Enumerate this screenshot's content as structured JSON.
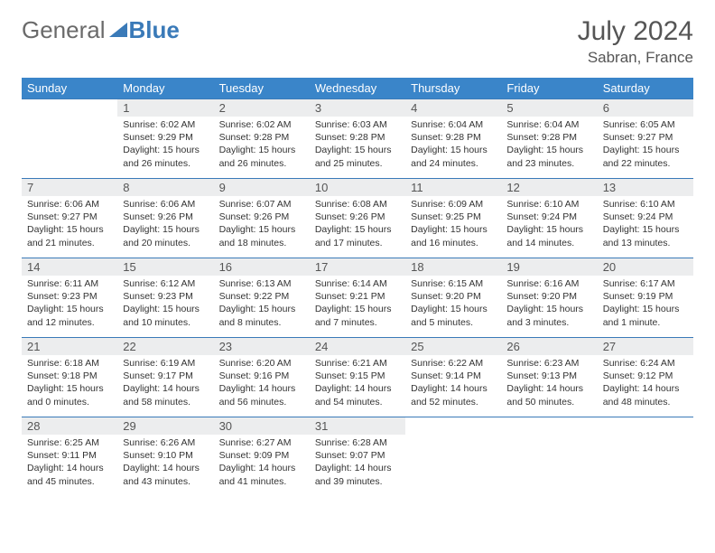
{
  "logo": {
    "text1": "General",
    "text2": "Blue"
  },
  "title": "July 2024",
  "location": "Sabran, France",
  "colors": {
    "header_bg": "#3a85c9",
    "header_text": "#ffffff",
    "border": "#3a7ab8",
    "daynum_bg": "#ecedee",
    "text": "#333333",
    "logo_gray": "#6a6a6a",
    "logo_blue": "#3a7ab8"
  },
  "weekdays": [
    "Sunday",
    "Monday",
    "Tuesday",
    "Wednesday",
    "Thursday",
    "Friday",
    "Saturday"
  ],
  "weeks": [
    [
      null,
      {
        "n": "1",
        "sr": "6:02 AM",
        "ss": "9:29 PM",
        "dl": "15 hours and 26 minutes."
      },
      {
        "n": "2",
        "sr": "6:02 AM",
        "ss": "9:28 PM",
        "dl": "15 hours and 26 minutes."
      },
      {
        "n": "3",
        "sr": "6:03 AM",
        "ss": "9:28 PM",
        "dl": "15 hours and 25 minutes."
      },
      {
        "n": "4",
        "sr": "6:04 AM",
        "ss": "9:28 PM",
        "dl": "15 hours and 24 minutes."
      },
      {
        "n": "5",
        "sr": "6:04 AM",
        "ss": "9:28 PM",
        "dl": "15 hours and 23 minutes."
      },
      {
        "n": "6",
        "sr": "6:05 AM",
        "ss": "9:27 PM",
        "dl": "15 hours and 22 minutes."
      }
    ],
    [
      {
        "n": "7",
        "sr": "6:06 AM",
        "ss": "9:27 PM",
        "dl": "15 hours and 21 minutes."
      },
      {
        "n": "8",
        "sr": "6:06 AM",
        "ss": "9:26 PM",
        "dl": "15 hours and 20 minutes."
      },
      {
        "n": "9",
        "sr": "6:07 AM",
        "ss": "9:26 PM",
        "dl": "15 hours and 18 minutes."
      },
      {
        "n": "10",
        "sr": "6:08 AM",
        "ss": "9:26 PM",
        "dl": "15 hours and 17 minutes."
      },
      {
        "n": "11",
        "sr": "6:09 AM",
        "ss": "9:25 PM",
        "dl": "15 hours and 16 minutes."
      },
      {
        "n": "12",
        "sr": "6:10 AM",
        "ss": "9:24 PM",
        "dl": "15 hours and 14 minutes."
      },
      {
        "n": "13",
        "sr": "6:10 AM",
        "ss": "9:24 PM",
        "dl": "15 hours and 13 minutes."
      }
    ],
    [
      {
        "n": "14",
        "sr": "6:11 AM",
        "ss": "9:23 PM",
        "dl": "15 hours and 12 minutes."
      },
      {
        "n": "15",
        "sr": "6:12 AM",
        "ss": "9:23 PM",
        "dl": "15 hours and 10 minutes."
      },
      {
        "n": "16",
        "sr": "6:13 AM",
        "ss": "9:22 PM",
        "dl": "15 hours and 8 minutes."
      },
      {
        "n": "17",
        "sr": "6:14 AM",
        "ss": "9:21 PM",
        "dl": "15 hours and 7 minutes."
      },
      {
        "n": "18",
        "sr": "6:15 AM",
        "ss": "9:20 PM",
        "dl": "15 hours and 5 minutes."
      },
      {
        "n": "19",
        "sr": "6:16 AM",
        "ss": "9:20 PM",
        "dl": "15 hours and 3 minutes."
      },
      {
        "n": "20",
        "sr": "6:17 AM",
        "ss": "9:19 PM",
        "dl": "15 hours and 1 minute."
      }
    ],
    [
      {
        "n": "21",
        "sr": "6:18 AM",
        "ss": "9:18 PM",
        "dl": "15 hours and 0 minutes."
      },
      {
        "n": "22",
        "sr": "6:19 AM",
        "ss": "9:17 PM",
        "dl": "14 hours and 58 minutes."
      },
      {
        "n": "23",
        "sr": "6:20 AM",
        "ss": "9:16 PM",
        "dl": "14 hours and 56 minutes."
      },
      {
        "n": "24",
        "sr": "6:21 AM",
        "ss": "9:15 PM",
        "dl": "14 hours and 54 minutes."
      },
      {
        "n": "25",
        "sr": "6:22 AM",
        "ss": "9:14 PM",
        "dl": "14 hours and 52 minutes."
      },
      {
        "n": "26",
        "sr": "6:23 AM",
        "ss": "9:13 PM",
        "dl": "14 hours and 50 minutes."
      },
      {
        "n": "27",
        "sr": "6:24 AM",
        "ss": "9:12 PM",
        "dl": "14 hours and 48 minutes."
      }
    ],
    [
      {
        "n": "28",
        "sr": "6:25 AM",
        "ss": "9:11 PM",
        "dl": "14 hours and 45 minutes."
      },
      {
        "n": "29",
        "sr": "6:26 AM",
        "ss": "9:10 PM",
        "dl": "14 hours and 43 minutes."
      },
      {
        "n": "30",
        "sr": "6:27 AM",
        "ss": "9:09 PM",
        "dl": "14 hours and 41 minutes."
      },
      {
        "n": "31",
        "sr": "6:28 AM",
        "ss": "9:07 PM",
        "dl": "14 hours and 39 minutes."
      },
      null,
      null,
      null
    ]
  ]
}
